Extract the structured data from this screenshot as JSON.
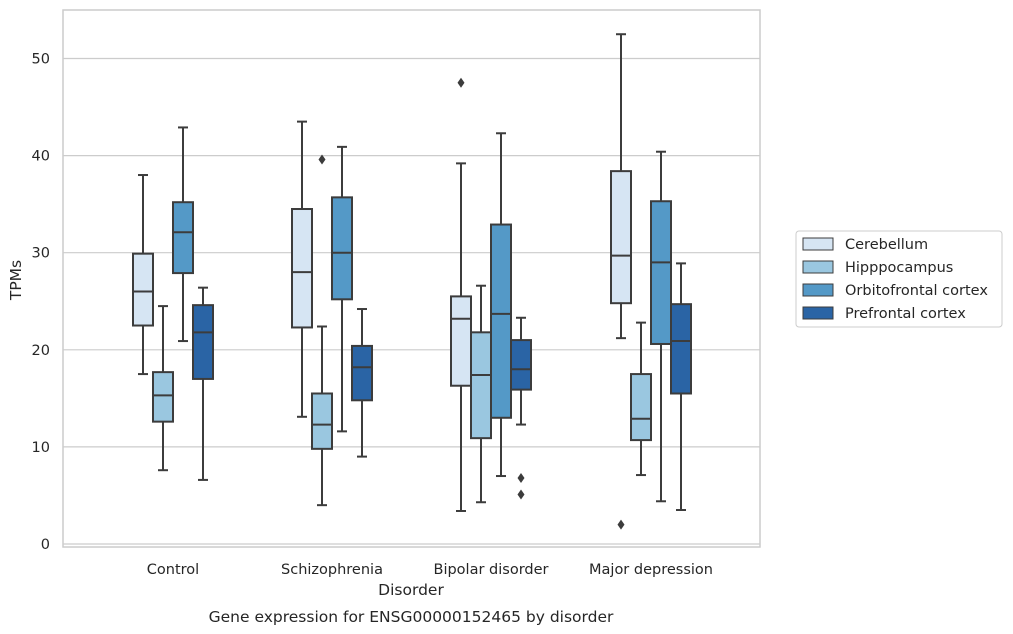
{
  "chart_data": {
    "type": "box",
    "caption": "Gene expression for ENSG00000152465 by disorder",
    "xlabel": "Disorder",
    "ylabel": "TPMs",
    "ylim": [
      -0.5,
      55
    ],
    "yticks": [
      "0",
      "10",
      "20",
      "30",
      "40",
      "50"
    ],
    "grid": true,
    "legend_position": "right",
    "categories": [
      "Control",
      "Schizophrenia",
      "Bipolar disorder",
      "Major depression"
    ],
    "series": [
      {
        "name": "Cerebellum",
        "color": "#d6e5f3",
        "boxes": [
          {
            "whislo": 17.5,
            "q1": 22.5,
            "med": 26.0,
            "q3": 29.9,
            "whishi": 38.0,
            "fliers": []
          },
          {
            "whislo": 13.1,
            "q1": 22.3,
            "med": 28.0,
            "q3": 34.5,
            "whishi": 43.5,
            "fliers": []
          },
          {
            "whislo": 3.4,
            "q1": 16.3,
            "med": 23.2,
            "q3": 25.5,
            "whishi": 39.2,
            "fliers": [
              47.5
            ]
          },
          {
            "whislo": 21.2,
            "q1": 24.8,
            "med": 29.7,
            "q3": 38.4,
            "whishi": 52.5,
            "fliers": [
              2.0
            ]
          }
        ]
      },
      {
        "name": "Hipppocampus",
        "color": "#9ac7e0",
        "boxes": [
          {
            "whislo": 7.6,
            "q1": 12.6,
            "med": 15.3,
            "q3": 17.7,
            "whishi": 24.5,
            "fliers": []
          },
          {
            "whislo": 4.0,
            "q1": 9.8,
            "med": 12.3,
            "q3": 15.5,
            "whishi": 22.4,
            "fliers": [
              39.6
            ]
          },
          {
            "whislo": 4.3,
            "q1": 10.9,
            "med": 17.4,
            "q3": 21.8,
            "whishi": 26.6,
            "fliers": []
          },
          {
            "whislo": 7.1,
            "q1": 10.7,
            "med": 12.9,
            "q3": 17.5,
            "whishi": 22.8,
            "fliers": []
          }
        ]
      },
      {
        "name": "Orbitofrontal cortex",
        "color": "#5499c7",
        "boxes": [
          {
            "whislo": 20.9,
            "q1": 27.9,
            "med": 32.1,
            "q3": 35.2,
            "whishi": 42.9,
            "fliers": []
          },
          {
            "whislo": 11.6,
            "q1": 25.2,
            "med": 30.0,
            "q3": 35.7,
            "whishi": 40.9,
            "fliers": []
          },
          {
            "whislo": 7.0,
            "q1": 13.0,
            "med": 23.7,
            "q3": 32.9,
            "whishi": 42.3,
            "fliers": []
          },
          {
            "whislo": 4.4,
            "q1": 20.6,
            "med": 29.0,
            "q3": 35.3,
            "whishi": 40.4,
            "fliers": []
          }
        ]
      },
      {
        "name": "Prefrontal cortex",
        "color": "#2a64a5",
        "boxes": [
          {
            "whislo": 6.6,
            "q1": 17.0,
            "med": 21.8,
            "q3": 24.6,
            "whishi": 26.4,
            "fliers": []
          },
          {
            "whislo": 9.0,
            "q1": 14.8,
            "med": 18.2,
            "q3": 20.4,
            "whishi": 24.2,
            "fliers": []
          },
          {
            "whislo": 12.3,
            "q1": 15.9,
            "med": 18.0,
            "q3": 21.0,
            "whishi": 23.3,
            "fliers": [
              6.8,
              5.1
            ]
          },
          {
            "whislo": 3.5,
            "q1": 15.5,
            "med": 20.9,
            "q3": 24.7,
            "whishi": 28.9,
            "fliers": []
          }
        ]
      }
    ]
  }
}
